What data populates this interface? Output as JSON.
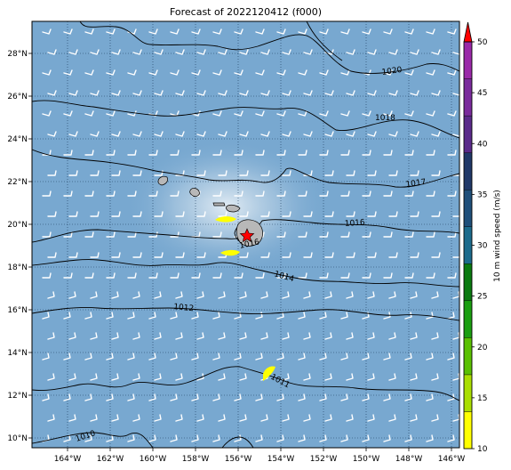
{
  "title": "Forecast of 2022120412 (f000)",
  "map": {
    "lon_ticks": [
      "164°W",
      "162°W",
      "160°W",
      "158°W",
      "156°W",
      "154°W",
      "152°W",
      "150°W",
      "148°W",
      "146°W"
    ],
    "lat_ticks": [
      "28°N",
      "26°N",
      "24°N",
      "22°N",
      "20°N",
      "18°N",
      "16°N",
      "14°N",
      "12°N",
      "10°N"
    ],
    "background_color": "#78a8d0",
    "grid": "dotted",
    "isobars": [
      {
        "label": "1020"
      },
      {
        "label": "1018"
      },
      {
        "label": "1017"
      },
      {
        "label": "1016"
      },
      {
        "label": "1016"
      },
      {
        "label": "1014"
      },
      {
        "label": "1012"
      },
      {
        "label": "1011"
      },
      {
        "label": "1010"
      }
    ],
    "marker": "red-star"
  },
  "colorbar": {
    "label": "10 m wind speed (m/s)",
    "ticks": [
      "10",
      "15",
      "20",
      "25",
      "30",
      "35",
      "40",
      "45",
      "50"
    ],
    "colors": [
      "#ffff00",
      "#aade00",
      "#5ac000",
      "#1a9e10",
      "#0a7a10",
      "#1c6b8c",
      "#1f4f7a",
      "#203868",
      "#5a2a8a",
      "#7a2a9c",
      "#9a28a8"
    ],
    "extend_color": "#ff0000"
  }
}
